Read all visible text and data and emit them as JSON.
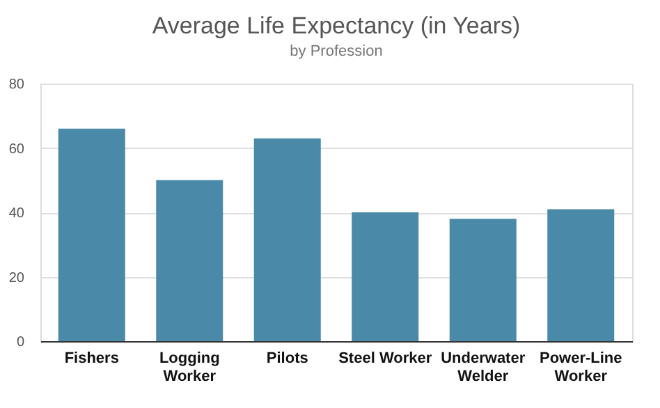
{
  "chart_data": {
    "type": "bar",
    "title": "Average Life Expectancy (in Years)",
    "subtitle": "by Profession",
    "categories": [
      "Fishers",
      "Logging Worker",
      "Pilots",
      "Steel Worker",
      "Underwater Welder",
      "Power-Line Worker"
    ],
    "values": [
      66,
      50,
      63,
      40,
      38,
      41
    ],
    "color": "#4a89a8",
    "ylim": [
      0,
      80
    ],
    "yticks": [
      0,
      20,
      40,
      60,
      80
    ],
    "grid": "y"
  }
}
